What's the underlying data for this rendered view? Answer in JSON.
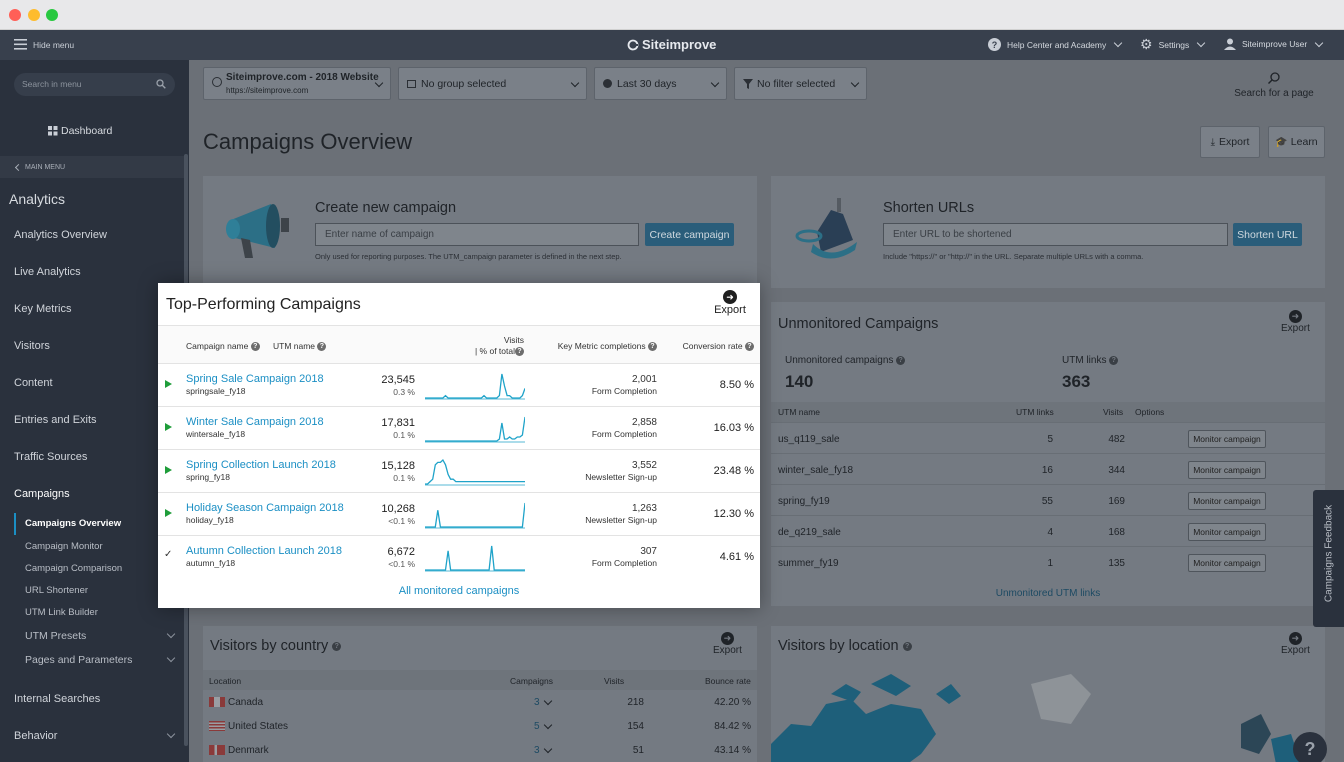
{
  "window": {
    "dots": [
      "#ff5f57",
      "#febc2e",
      "#28c840"
    ]
  },
  "topbar": {
    "hide_menu": "Hide menu",
    "brand": "Siteimprove",
    "help": "Help Center and Academy",
    "settings": "Settings",
    "user": "Siteimprove User"
  },
  "sidebar": {
    "search_placeholder": "Search in menu",
    "dashboard": "Dashboard",
    "main_menu": "MAIN MENU",
    "section": "Analytics",
    "items": [
      "Analytics Overview",
      "Live Analytics",
      "Key Metrics",
      "Visitors",
      "Content",
      "Entries and Exits",
      "Traffic Sources",
      "Campaigns"
    ],
    "sub_items": [
      "Campaigns Overview",
      "Campaign Monitor",
      "Campaign Comparison",
      "URL Shortener",
      "UTM Link Builder",
      "UTM Presets",
      "Pages and Parameters"
    ],
    "bottom_items": [
      "Internal Searches",
      "Behavior"
    ]
  },
  "filters": {
    "site_name": "Siteimprove.com - 2018 Website",
    "site_url": "https://siteimprove.com",
    "group": "No group selected",
    "period": "Last 30 days",
    "filter": "No filter selected",
    "search_page": "Search for a page"
  },
  "page": {
    "title": "Campaigns Overview",
    "export": "Export",
    "learn": "Learn"
  },
  "create": {
    "title": "Create new campaign",
    "placeholder": "Enter name of campaign",
    "button": "Create campaign",
    "hint": "Only used for reporting purposes. The UTM_campaign parameter is defined in the next step."
  },
  "shorten": {
    "title": "Shorten URLs",
    "placeholder": "Enter URL to be shortened",
    "button": "Shorten URL",
    "hint": "Include \"https://\" or \"http://\" in the URL. Separate multiple URLs with a comma."
  },
  "top": {
    "title": "Top-Performing Campaigns",
    "export": "Export",
    "col_name": "Campaign name",
    "col_utm": "UTM name",
    "col_visits": "Visits",
    "col_pct": "| % of total",
    "col_metric": "Key Metric completions",
    "col_conv": "Conversion rate",
    "rows": [
      {
        "name": "Spring Sale Campaign 2018",
        "utm": "springsale_fy18",
        "visits": "23,545",
        "pct": "0.3 %",
        "metric": "2,001",
        "metric_label": "Form Completion",
        "conv": "8.50 %",
        "icon": "play"
      },
      {
        "name": "Winter Sale Campaign 2018",
        "utm": "wintersale_fy18",
        "visits": "17,831",
        "pct": "0.1 %",
        "metric": "2,858",
        "metric_label": "Form Completion",
        "conv": "16.03 %",
        "icon": "play"
      },
      {
        "name": "Spring Collection Launch 2018",
        "utm": "spring_fy18",
        "visits": "15,128",
        "pct": "0.1 %",
        "metric": "3,552",
        "metric_label": "Newsletter Sign-up",
        "conv": "23.48 %",
        "icon": "play"
      },
      {
        "name": "Holiday Season Campaign 2018",
        "utm": "holiday_fy18",
        "visits": "10,268",
        "pct": "<0.1 %",
        "metric": "1,263",
        "metric_label": "Newsletter Sign-up",
        "conv": "12.30 %",
        "icon": "play"
      },
      {
        "name": "Autumn Collection Launch 2018",
        "utm": "autumn_fy18",
        "visits": "6,672",
        "pct": "<0.1 %",
        "metric": "307",
        "metric_label": "Form Completion",
        "conv": "4.61 %",
        "icon": "check"
      }
    ],
    "footer": "All monitored campaigns"
  },
  "unmon": {
    "title": "Unmonitored Campaigns",
    "export": "Export",
    "count_label": "Unmonitored campaigns",
    "count": "140",
    "links_label": "UTM links",
    "links": "363",
    "col_name": "UTM name",
    "col_links": "UTM links",
    "col_visits": "Visits",
    "col_options": "Options",
    "button": "Monitor campaign",
    "rows": [
      {
        "name": "us_q119_sale",
        "links": "5",
        "visits": "482"
      },
      {
        "name": "winter_sale_fy18",
        "links": "16",
        "visits": "344"
      },
      {
        "name": "spring_fy19",
        "links": "55",
        "visits": "169"
      },
      {
        "name": "de_q219_sale",
        "links": "4",
        "visits": "168"
      },
      {
        "name": "summer_fy19",
        "links": "1",
        "visits": "135"
      }
    ],
    "footer": "Unmonitored UTM links"
  },
  "country": {
    "title": "Visitors by country",
    "export": "Export",
    "col_loc": "Location",
    "col_camp": "Campaigns",
    "col_visits": "Visits",
    "col_bounce": "Bounce rate",
    "rows": [
      {
        "name": "Canada",
        "camp": "3",
        "visits": "218",
        "bounce": "42.20 %"
      },
      {
        "name": "United States",
        "camp": "5",
        "visits": "154",
        "bounce": "84.42 %"
      },
      {
        "name": "Denmark",
        "camp": "3",
        "visits": "51",
        "bounce": "43.14 %"
      }
    ]
  },
  "location": {
    "title": "Visitors by location",
    "export": "Export"
  },
  "feedback": "Campaigns Feedback",
  "help_btn": "?"
}
